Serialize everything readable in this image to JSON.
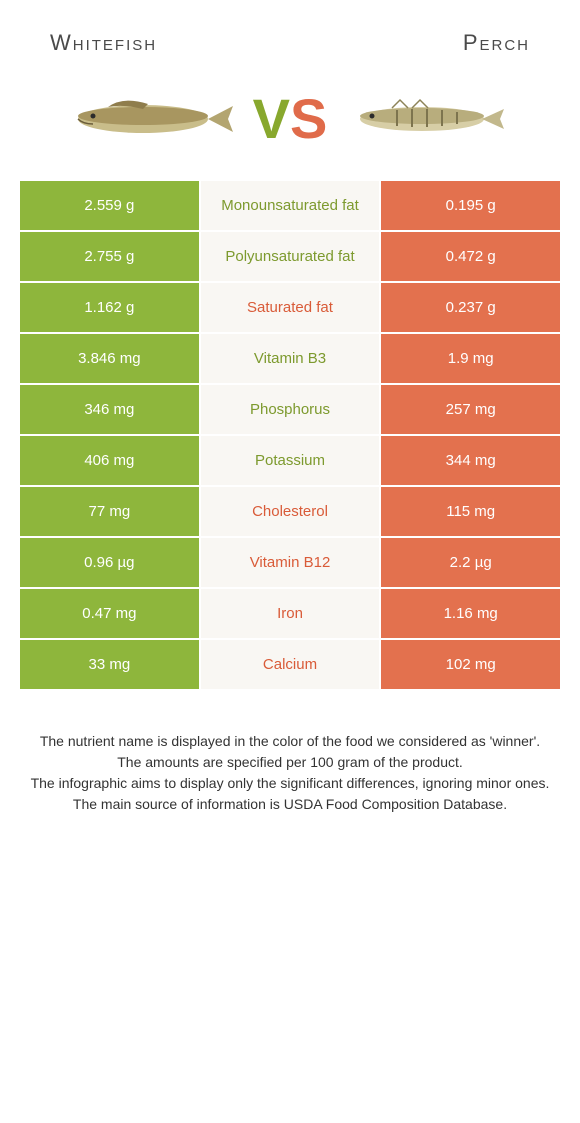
{
  "header": {
    "left_title": "Whitefish",
    "right_title": "Perch"
  },
  "vs": {
    "v": "V",
    "s": "S"
  },
  "colors": {
    "left_bg": "#8eb63c",
    "right_bg": "#e3714e",
    "mid_bg": "#f9f7f3",
    "left_text": "#7d9a2e",
    "right_text": "#d95b38"
  },
  "rows": [
    {
      "left": "2.559 g",
      "label": "Monounsaturated fat",
      "right": "0.195 g",
      "winner": "left"
    },
    {
      "left": "2.755 g",
      "label": "Polyunsaturated fat",
      "right": "0.472 g",
      "winner": "left"
    },
    {
      "left": "1.162 g",
      "label": "Saturated fat",
      "right": "0.237 g",
      "winner": "right"
    },
    {
      "left": "3.846 mg",
      "label": "Vitamin B3",
      "right": "1.9 mg",
      "winner": "left"
    },
    {
      "left": "346 mg",
      "label": "Phosphorus",
      "right": "257 mg",
      "winner": "left"
    },
    {
      "left": "406 mg",
      "label": "Potassium",
      "right": "344 mg",
      "winner": "left"
    },
    {
      "left": "77 mg",
      "label": "Cholesterol",
      "right": "115 mg",
      "winner": "right"
    },
    {
      "left": "0.96 µg",
      "label": "Vitamin B12",
      "right": "2.2 µg",
      "winner": "right"
    },
    {
      "left": "0.47 mg",
      "label": "Iron",
      "right": "1.16 mg",
      "winner": "right"
    },
    {
      "left": "33 mg",
      "label": "Calcium",
      "right": "102 mg",
      "winner": "right"
    }
  ],
  "footer": {
    "l1": "The nutrient name is displayed in the color of the food we considered as 'winner'.",
    "l2": "The amounts are specified per 100 gram of the product.",
    "l3": "The infographic aims to display only the significant differences, ignoring minor ones.",
    "l4": "The main source of information is USDA Food Composition Database."
  }
}
